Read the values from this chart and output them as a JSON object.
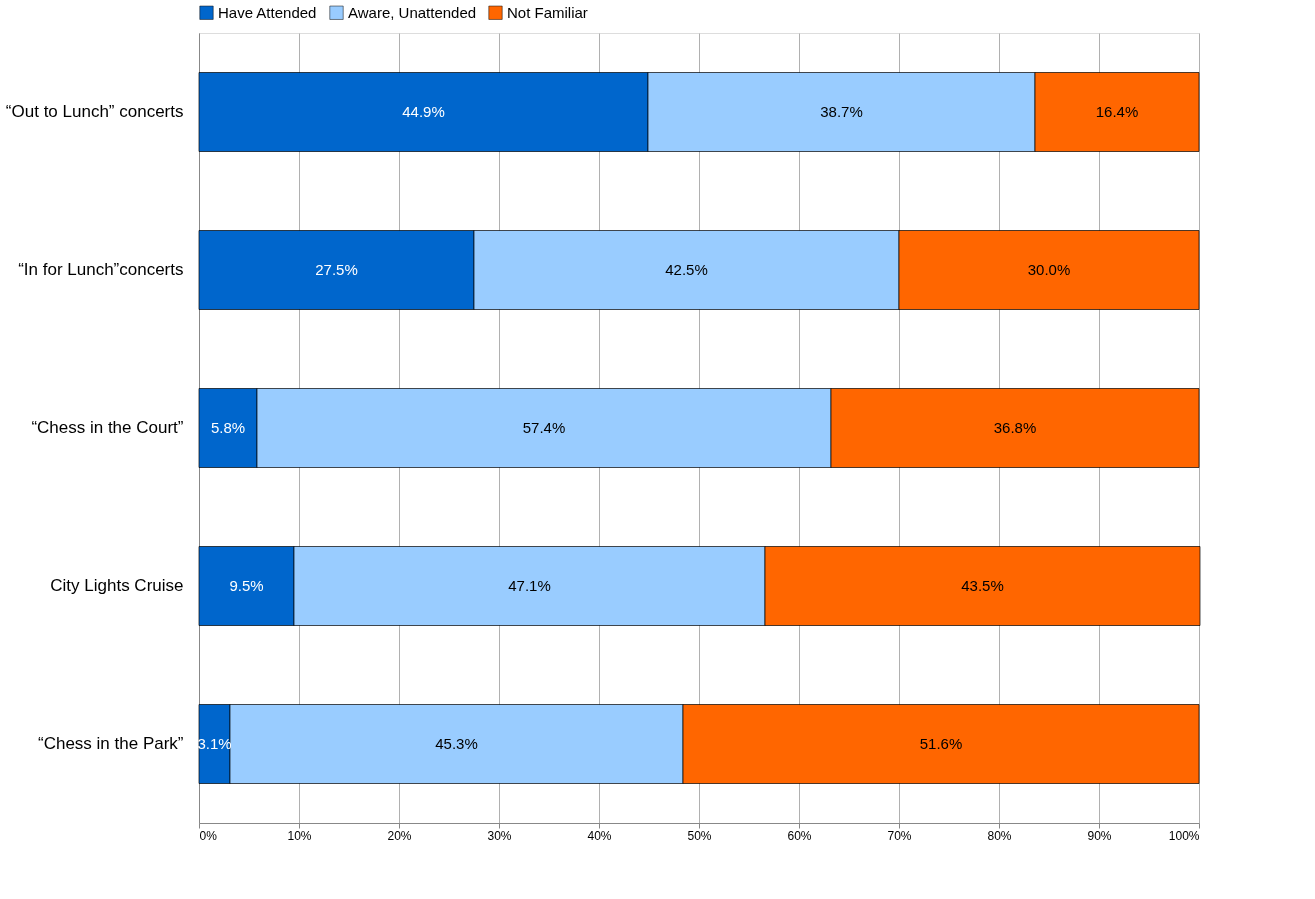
{
  "chart_data": {
    "type": "bar",
    "orientation": "horizontal",
    "stacked": true,
    "categories": [
      "“Out to Lunch” concerts",
      "“In for Lunch”concerts",
      "“Chess in the Court”",
      "City Lights Cruise",
      "“Chess in the Park”"
    ],
    "series": [
      {
        "name": "Have Attended",
        "color": "#0066cc",
        "values": [
          44.9,
          27.5,
          5.8,
          9.5,
          3.1
        ],
        "value_labels": [
          "44.9%",
          "27.5%",
          "5.8%",
          "9.5%",
          "3.1%"
        ]
      },
      {
        "name": "Aware, Unattended",
        "color": "#99ccff",
        "values": [
          38.7,
          42.5,
          57.4,
          47.1,
          45.3
        ],
        "value_labels": [
          "38.7%",
          "42.5%",
          "57.4%",
          "47.1%",
          "45.3%"
        ]
      },
      {
        "name": "Not Familiar",
        "color": "#ff6600",
        "values": [
          16.4,
          30.0,
          36.8,
          43.5,
          51.6
        ],
        "value_labels": [
          "16.4%",
          "30.0%",
          "36.8%",
          "43.5%",
          "51.6%"
        ]
      }
    ],
    "xlim": [
      0,
      100
    ],
    "xticks": [
      {
        "value": 0,
        "label": "0%"
      },
      {
        "value": 10,
        "label": "10%"
      },
      {
        "value": 20,
        "label": "20%"
      },
      {
        "value": 30,
        "label": "30%"
      },
      {
        "value": 40,
        "label": "40%"
      },
      {
        "value": 50,
        "label": "50%"
      },
      {
        "value": 60,
        "label": "60%"
      },
      {
        "value": 70,
        "label": "70%"
      },
      {
        "value": 80,
        "label": "80%"
      },
      {
        "value": 90,
        "label": "90%"
      },
      {
        "value": 100,
        "label": "100%"
      }
    ],
    "grid": "x",
    "legend": "top"
  }
}
